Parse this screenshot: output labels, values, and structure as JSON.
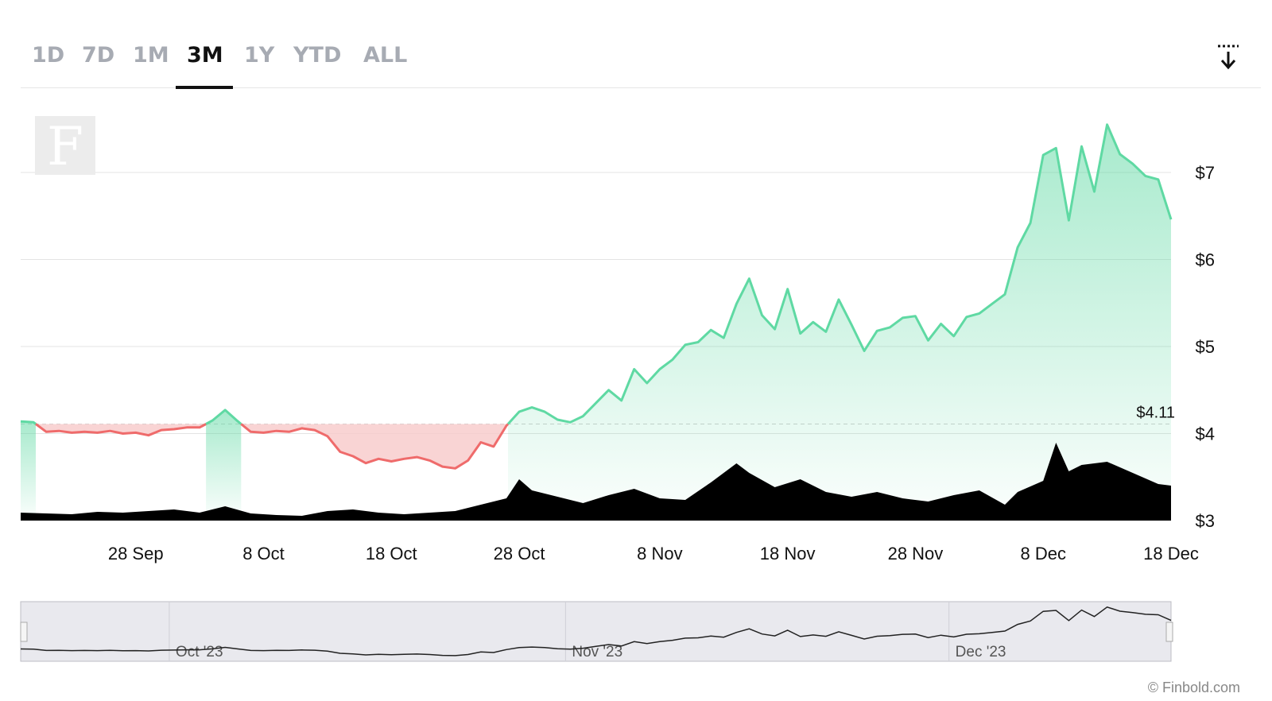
{
  "tabs": [
    {
      "label": "1D",
      "active": false
    },
    {
      "label": "7D",
      "active": false
    },
    {
      "label": "1M",
      "active": false
    },
    {
      "label": "3M",
      "active": true
    },
    {
      "label": "1Y",
      "active": false
    },
    {
      "label": "YTD",
      "active": false
    },
    {
      "label": "ALL",
      "active": false
    }
  ],
  "download_icon": "download-icon",
  "watermark_letter": "F",
  "credit": "© Finbold.com",
  "colors": {
    "up": "#5fd9a3",
    "down": "#ef6b6b",
    "volume": "#000000",
    "up_fill": "#c8f3df",
    "down_fill": "#f8c9c9"
  },
  "chart_data": {
    "type": "line",
    "baseline": 4.11,
    "baseline_label": "$4.11",
    "y_ticks": [
      {
        "value": 7,
        "label": "$7"
      },
      {
        "value": 6,
        "label": "$6"
      },
      {
        "value": 5,
        "label": "$5"
      },
      {
        "value": 4,
        "label": "$4"
      },
      {
        "value": 3,
        "label": "$3"
      }
    ],
    "ylim": [
      3,
      7.6
    ],
    "x_range": [
      "2023-09-19",
      "2023-12-18"
    ],
    "x_ticks": [
      {
        "date": "2023-09-28",
        "label": "28 Sep"
      },
      {
        "date": "2023-10-08",
        "label": "8 Oct"
      },
      {
        "date": "2023-10-18",
        "label": "18 Oct"
      },
      {
        "date": "2023-10-28",
        "label": "28 Oct"
      },
      {
        "date": "2023-11-08",
        "label": "8 Nov"
      },
      {
        "date": "2023-11-18",
        "label": "18 Nov"
      },
      {
        "date": "2023-11-28",
        "label": "28 Nov"
      },
      {
        "date": "2023-12-08",
        "label": "8 Dec"
      },
      {
        "date": "2023-12-18",
        "label": "18 Dec"
      }
    ],
    "price": [
      [
        "2023-09-19",
        4.14
      ],
      [
        "2023-09-20",
        4.13
      ],
      [
        "2023-09-21",
        4.02
      ],
      [
        "2023-09-22",
        4.03
      ],
      [
        "2023-09-23",
        4.01
      ],
      [
        "2023-09-24",
        4.02
      ],
      [
        "2023-09-25",
        4.01
      ],
      [
        "2023-09-26",
        4.03
      ],
      [
        "2023-09-27",
        4.0
      ],
      [
        "2023-09-28",
        4.01
      ],
      [
        "2023-09-29",
        3.98
      ],
      [
        "2023-09-30",
        4.04
      ],
      [
        "2023-10-01",
        4.05
      ],
      [
        "2023-10-02",
        4.07
      ],
      [
        "2023-10-03",
        4.07
      ],
      [
        "2023-10-04",
        4.15
      ],
      [
        "2023-10-05",
        4.27
      ],
      [
        "2023-10-06",
        4.14
      ],
      [
        "2023-10-07",
        4.02
      ],
      [
        "2023-10-08",
        4.01
      ],
      [
        "2023-10-09",
        4.03
      ],
      [
        "2023-10-10",
        4.02
      ],
      [
        "2023-10-11",
        4.06
      ],
      [
        "2023-10-12",
        4.04
      ],
      [
        "2023-10-13",
        3.97
      ],
      [
        "2023-10-14",
        3.79
      ],
      [
        "2023-10-15",
        3.74
      ],
      [
        "2023-10-16",
        3.66
      ],
      [
        "2023-10-17",
        3.71
      ],
      [
        "2023-10-18",
        3.68
      ],
      [
        "2023-10-19",
        3.71
      ],
      [
        "2023-10-20",
        3.73
      ],
      [
        "2023-10-21",
        3.69
      ],
      [
        "2023-10-22",
        3.62
      ],
      [
        "2023-10-23",
        3.6
      ],
      [
        "2023-10-24",
        3.69
      ],
      [
        "2023-10-25",
        3.9
      ],
      [
        "2023-10-26",
        3.85
      ],
      [
        "2023-10-27",
        4.09
      ],
      [
        "2023-10-28",
        4.25
      ],
      [
        "2023-10-29",
        4.3
      ],
      [
        "2023-10-30",
        4.25
      ],
      [
        "2023-10-31",
        4.16
      ],
      [
        "2023-11-01",
        4.13
      ],
      [
        "2023-11-02",
        4.2
      ],
      [
        "2023-11-03",
        4.35
      ],
      [
        "2023-11-04",
        4.5
      ],
      [
        "2023-11-05",
        4.38
      ],
      [
        "2023-11-06",
        4.74
      ],
      [
        "2023-11-07",
        4.58
      ],
      [
        "2023-11-08",
        4.74
      ],
      [
        "2023-11-09",
        4.85
      ],
      [
        "2023-11-10",
        5.02
      ],
      [
        "2023-11-11",
        5.05
      ],
      [
        "2023-11-12",
        5.19
      ],
      [
        "2023-11-13",
        5.1
      ],
      [
        "2023-11-14",
        5.49
      ],
      [
        "2023-11-15",
        5.78
      ],
      [
        "2023-11-16",
        5.36
      ],
      [
        "2023-11-17",
        5.2
      ],
      [
        "2023-11-18",
        5.66
      ],
      [
        "2023-11-19",
        5.15
      ],
      [
        "2023-11-20",
        5.28
      ],
      [
        "2023-11-21",
        5.17
      ],
      [
        "2023-11-22",
        5.54
      ],
      [
        "2023-11-23",
        5.25
      ],
      [
        "2023-11-24",
        4.95
      ],
      [
        "2023-11-25",
        5.18
      ],
      [
        "2023-11-26",
        5.22
      ],
      [
        "2023-11-27",
        5.33
      ],
      [
        "2023-11-28",
        5.35
      ],
      [
        "2023-11-29",
        5.07
      ],
      [
        "2023-11-30",
        5.26
      ],
      [
        "2023-12-01",
        5.12
      ],
      [
        "2023-12-02",
        5.34
      ],
      [
        "2023-12-03",
        5.38
      ],
      [
        "2023-12-04",
        5.49
      ],
      [
        "2023-12-05",
        5.6
      ],
      [
        "2023-12-06",
        6.14
      ],
      [
        "2023-12-07",
        6.42
      ],
      [
        "2023-12-08",
        7.2
      ],
      [
        "2023-12-09",
        7.28
      ],
      [
        "2023-12-10",
        6.45
      ],
      [
        "2023-12-11",
        7.3
      ],
      [
        "2023-12-12",
        6.78
      ],
      [
        "2023-12-13",
        7.55
      ],
      [
        "2023-12-14",
        7.21
      ],
      [
        "2023-12-15",
        7.1
      ],
      [
        "2023-12-16",
        6.96
      ],
      [
        "2023-12-17",
        6.92
      ],
      [
        "2023-12-18",
        6.46
      ]
    ],
    "volume": [
      [
        "2023-09-19",
        0.1
      ],
      [
        "2023-09-21",
        0.09
      ],
      [
        "2023-09-23",
        0.08
      ],
      [
        "2023-09-25",
        0.11
      ],
      [
        "2023-09-27",
        0.1
      ],
      [
        "2023-09-29",
        0.12
      ],
      [
        "2023-10-01",
        0.14
      ],
      [
        "2023-10-03",
        0.1
      ],
      [
        "2023-10-05",
        0.18
      ],
      [
        "2023-10-07",
        0.09
      ],
      [
        "2023-10-09",
        0.07
      ],
      [
        "2023-10-11",
        0.06
      ],
      [
        "2023-10-13",
        0.12
      ],
      [
        "2023-10-15",
        0.14
      ],
      [
        "2023-10-17",
        0.1
      ],
      [
        "2023-10-19",
        0.08
      ],
      [
        "2023-10-21",
        0.1
      ],
      [
        "2023-10-23",
        0.12
      ],
      [
        "2023-10-25",
        0.2
      ],
      [
        "2023-10-27",
        0.28
      ],
      [
        "2023-10-28",
        0.52
      ],
      [
        "2023-10-29",
        0.38
      ],
      [
        "2023-10-31",
        0.3
      ],
      [
        "2023-11-02",
        0.22
      ],
      [
        "2023-11-04",
        0.32
      ],
      [
        "2023-11-06",
        0.4
      ],
      [
        "2023-11-08",
        0.28
      ],
      [
        "2023-11-10",
        0.26
      ],
      [
        "2023-11-12",
        0.48
      ],
      [
        "2023-11-14",
        0.72
      ],
      [
        "2023-11-15",
        0.6
      ],
      [
        "2023-11-17",
        0.42
      ],
      [
        "2023-11-19",
        0.52
      ],
      [
        "2023-11-21",
        0.36
      ],
      [
        "2023-11-23",
        0.3
      ],
      [
        "2023-11-25",
        0.36
      ],
      [
        "2023-11-27",
        0.28
      ],
      [
        "2023-11-29",
        0.24
      ],
      [
        "2023-12-01",
        0.32
      ],
      [
        "2023-12-03",
        0.38
      ],
      [
        "2023-12-05",
        0.2
      ],
      [
        "2023-12-06",
        0.36
      ],
      [
        "2023-12-08",
        0.5
      ],
      [
        "2023-12-09",
        0.98
      ],
      [
        "2023-12-10",
        0.62
      ],
      [
        "2023-12-11",
        0.7
      ],
      [
        "2023-12-13",
        0.74
      ],
      [
        "2023-12-15",
        0.6
      ],
      [
        "2023-12-17",
        0.46
      ],
      [
        "2023-12-18",
        0.44
      ]
    ],
    "navigator": {
      "labels": [
        {
          "date": "2023-10-01",
          "label": "Oct '23"
        },
        {
          "date": "2023-11-01",
          "label": "Nov '23"
        },
        {
          "date": "2023-12-01",
          "label": "Dec '23"
        }
      ]
    }
  }
}
